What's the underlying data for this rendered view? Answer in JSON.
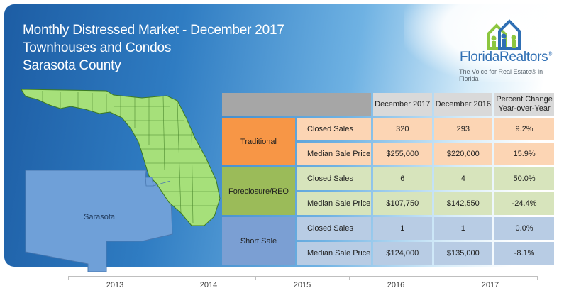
{
  "header": {
    "title_line1": "Monthly Distressed Market - December 2017",
    "title_line2": "Townhouses and Condos",
    "title_line3": "Sarasota County"
  },
  "logo": {
    "name": "FloridaRealtors",
    "registered": "®",
    "tagline": "The Voice for Real Estate® in Florida",
    "icon": "houses-with-people-icon"
  },
  "map": {
    "county_label": "Sarasota",
    "highlight_color": "#6fa0d8",
    "state_color": "#a6e07a"
  },
  "chart_data": {
    "type": "table",
    "columns": [
      "December 2017",
      "December 2016",
      "Percent Change Year-over-Year"
    ],
    "column_heads": {
      "c1": "December 2017",
      "c2": "December 2016",
      "c3_line1": "Percent Change",
      "c3_line2": "Year-over-Year"
    },
    "groups": [
      {
        "category": "Traditional",
        "color": "#f79646",
        "rows": [
          {
            "metric": "Closed Sales",
            "dec2017": "320",
            "dec2016": "293",
            "pct": "9.2%"
          },
          {
            "metric": "Median Sale Price",
            "dec2017": "$255,000",
            "dec2016": "$220,000",
            "pct": "15.9%"
          }
        ]
      },
      {
        "category": "Foreclosure/REO",
        "color": "#9bbb59",
        "rows": [
          {
            "metric": "Closed Sales",
            "dec2017": "6",
            "dec2016": "4",
            "pct": "50.0%"
          },
          {
            "metric": "Median Sale Price",
            "dec2017": "$107,750",
            "dec2016": "$142,550",
            "pct": "-24.4%"
          }
        ]
      },
      {
        "category": "Short Sale",
        "color": "#7b9fd3",
        "rows": [
          {
            "metric": "Closed Sales",
            "dec2017": "1",
            "dec2016": "1",
            "pct": "0.0%"
          },
          {
            "metric": "Median Sale Price",
            "dec2017": "$124,000",
            "dec2016": "$135,000",
            "pct": "-8.1%"
          }
        ]
      }
    ],
    "x_axis": {
      "labels": [
        "2013",
        "2014",
        "2015",
        "2016",
        "2017"
      ]
    }
  }
}
